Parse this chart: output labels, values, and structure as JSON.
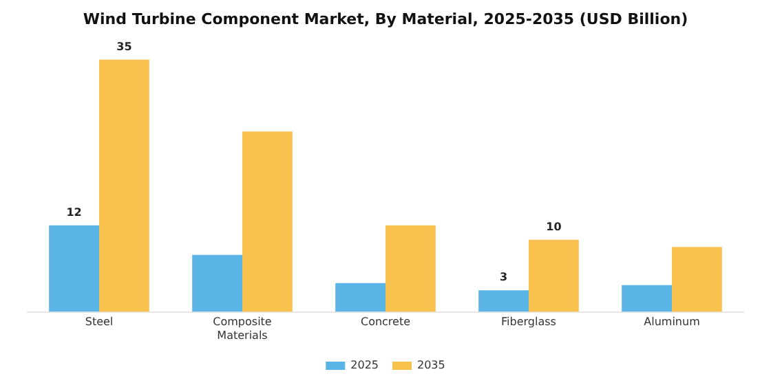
{
  "chart_data": {
    "type": "bar",
    "title": "Wind Turbine Component Market, By Material, 2025-2035 (USD Billion)",
    "categories": [
      "Steel",
      "Composite Materials",
      "Concrete",
      "Fiberglass",
      "Aluminum"
    ],
    "series": [
      {
        "name": "2025",
        "color": "#5ab4e5",
        "values": [
          12,
          7.9,
          4,
          3,
          3.7
        ],
        "value_labels": [
          "12",
          null,
          null,
          "3",
          null
        ]
      },
      {
        "name": "2035",
        "color": "#f9c24f",
        "values": [
          35,
          25,
          12,
          10,
          9
        ],
        "value_labels": [
          "35",
          null,
          null,
          "10",
          null
        ]
      }
    ],
    "legend": "bottom",
    "grid": false
  }
}
